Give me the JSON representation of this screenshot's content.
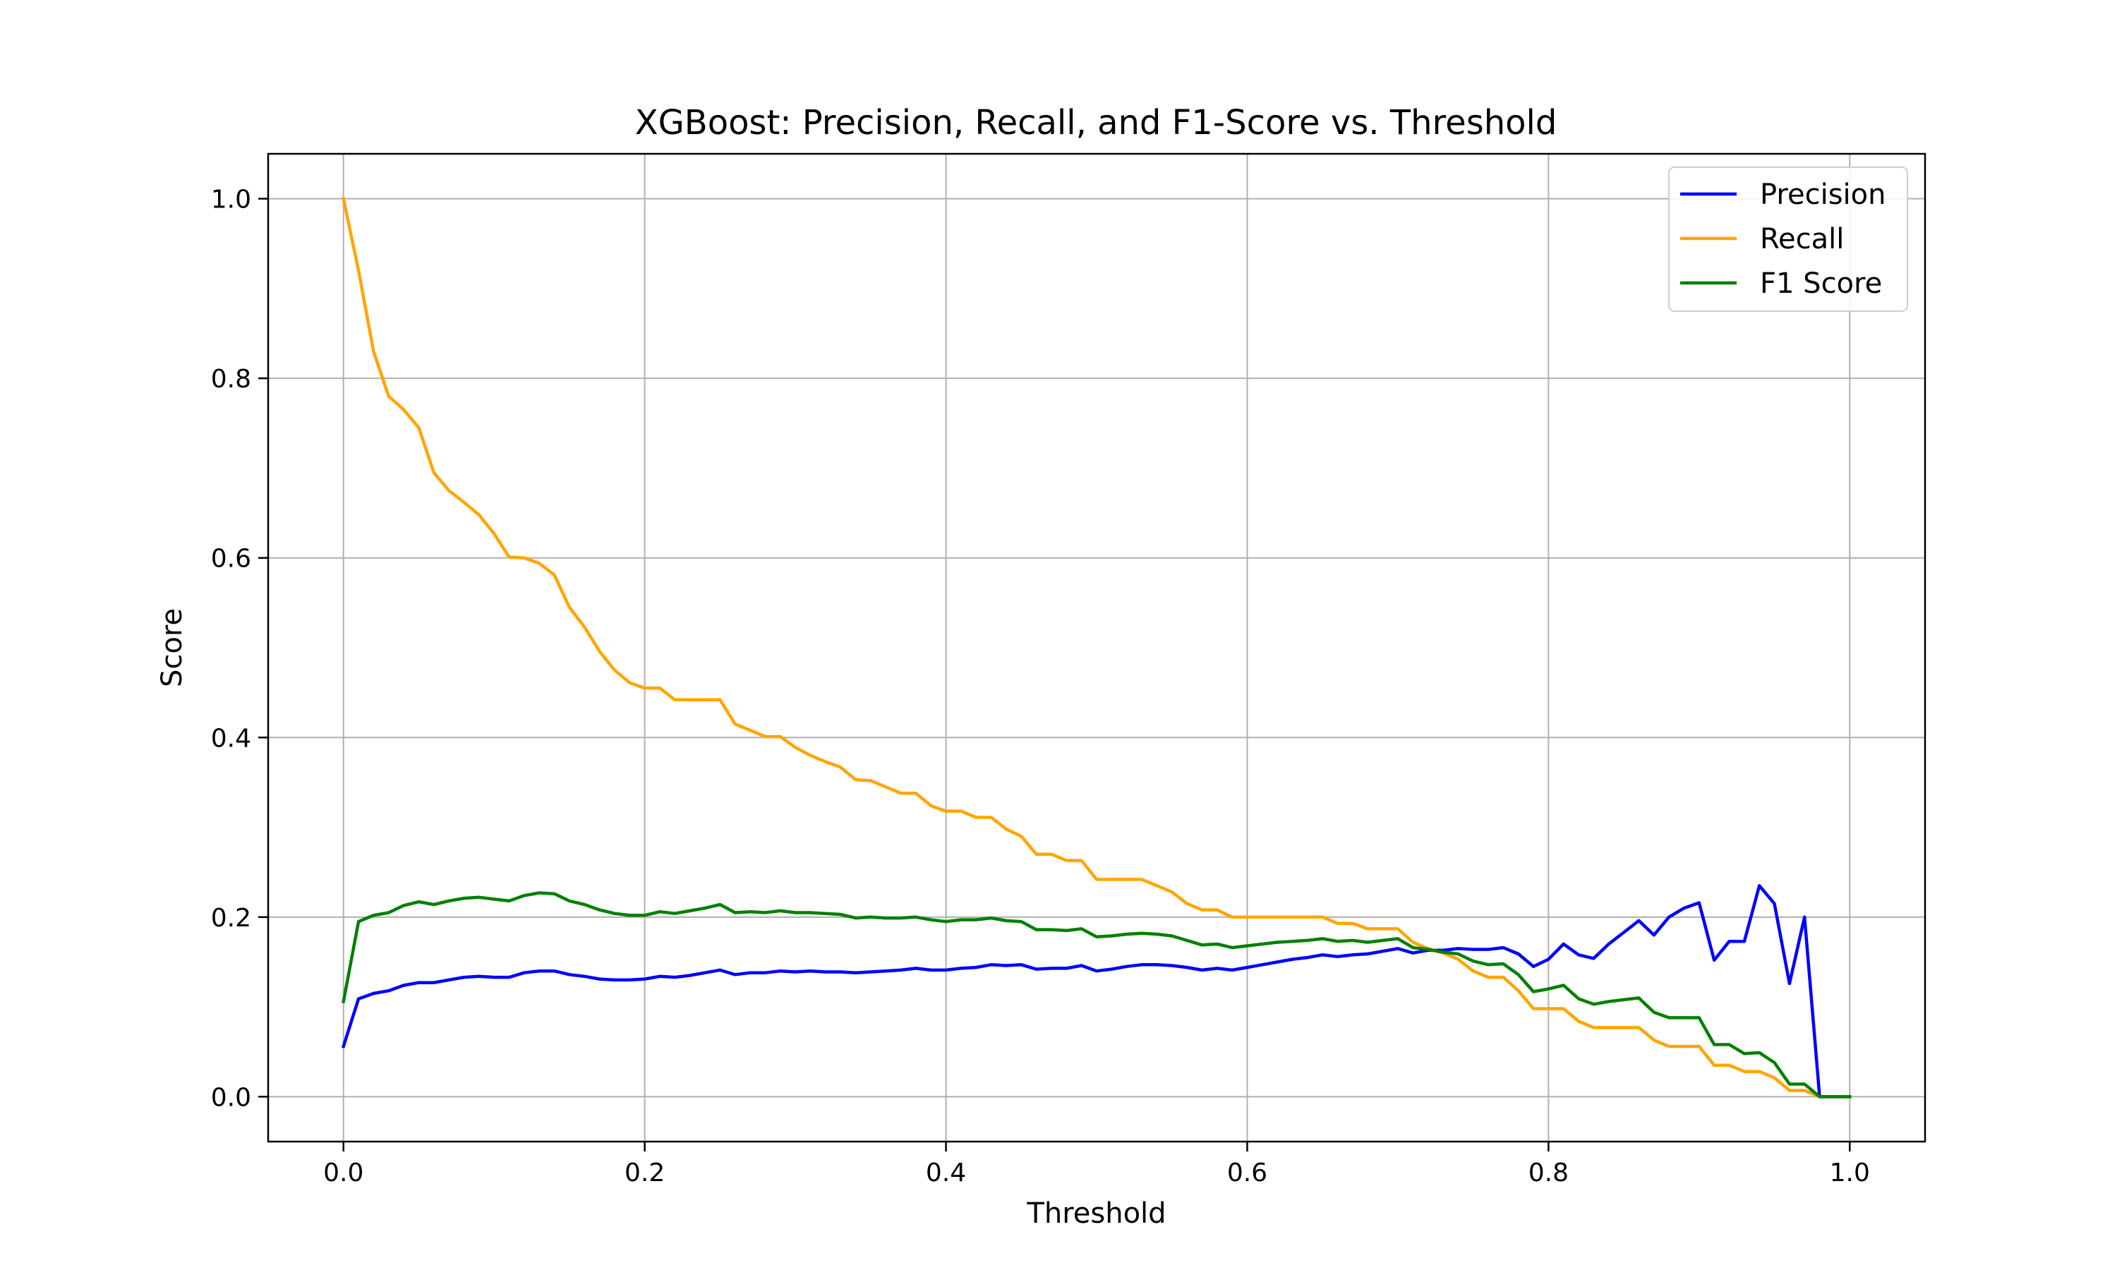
{
  "chart_data": {
    "type": "line",
    "title": "XGBoost: Precision, Recall, and F1-Score vs. Threshold",
    "xlabel": "Threshold",
    "ylabel": "Score",
    "xlim": [
      -0.05,
      1.05
    ],
    "ylim": [
      -0.05,
      1.05
    ],
    "xticks": [
      0.0,
      0.2,
      0.4,
      0.6,
      0.8,
      1.0
    ],
    "xtick_labels": [
      "0.0",
      "0.2",
      "0.4",
      "0.6",
      "0.8",
      "1.0"
    ],
    "yticks": [
      0.0,
      0.2,
      0.4,
      0.6,
      0.8,
      1.0
    ],
    "ytick_labels": [
      "0.0",
      "0.2",
      "0.4",
      "0.6",
      "0.8",
      "1.0"
    ],
    "grid": true,
    "legend_position": "top-right",
    "x": [
      0.0,
      0.01,
      0.02,
      0.03,
      0.04,
      0.05,
      0.06,
      0.07,
      0.08,
      0.09,
      0.1,
      0.11,
      0.12,
      0.13,
      0.14,
      0.15,
      0.16,
      0.17,
      0.18,
      0.19,
      0.2,
      0.21,
      0.22,
      0.23,
      0.24,
      0.25,
      0.26,
      0.27,
      0.28,
      0.29,
      0.3,
      0.31,
      0.32,
      0.33,
      0.34,
      0.35,
      0.36,
      0.37,
      0.38,
      0.39,
      0.4,
      0.41,
      0.42,
      0.43,
      0.44,
      0.45,
      0.46,
      0.47,
      0.48,
      0.49,
      0.5,
      0.51,
      0.52,
      0.53,
      0.54,
      0.55,
      0.56,
      0.57,
      0.58,
      0.59,
      0.6,
      0.61,
      0.62,
      0.63,
      0.64,
      0.65,
      0.66,
      0.67,
      0.68,
      0.69,
      0.7,
      0.71,
      0.72,
      0.73,
      0.74,
      0.75,
      0.76,
      0.77,
      0.78,
      0.79,
      0.8,
      0.81,
      0.82,
      0.83,
      0.84,
      0.85,
      0.86,
      0.87,
      0.88,
      0.89,
      0.9,
      0.91,
      0.92,
      0.93,
      0.94,
      0.95,
      0.96,
      0.97,
      0.98,
      0.99,
      1.0
    ],
    "series": [
      {
        "name": "Precision",
        "color": "#0000ff",
        "values": [
          0.056,
          0.109,
          0.115,
          0.118,
          0.124,
          0.127,
          0.127,
          0.13,
          0.133,
          0.134,
          0.133,
          0.133,
          0.138,
          0.14,
          0.14,
          0.136,
          0.134,
          0.131,
          0.13,
          0.13,
          0.131,
          0.134,
          0.133,
          0.135,
          0.138,
          0.141,
          0.136,
          0.138,
          0.138,
          0.14,
          0.139,
          0.14,
          0.139,
          0.139,
          0.138,
          0.139,
          0.14,
          0.141,
          0.143,
          0.141,
          0.141,
          0.143,
          0.144,
          0.147,
          0.146,
          0.147,
          0.142,
          0.143,
          0.143,
          0.146,
          0.14,
          0.142,
          0.145,
          0.147,
          0.147,
          0.146,
          0.144,
          0.141,
          0.143,
          0.141,
          0.144,
          0.147,
          0.15,
          0.153,
          0.155,
          0.158,
          0.156,
          0.158,
          0.159,
          0.162,
          0.165,
          0.16,
          0.163,
          0.163,
          0.165,
          0.164,
          0.164,
          0.166,
          0.159,
          0.145,
          0.153,
          0.17,
          0.158,
          0.154,
          0.17,
          0.183,
          0.196,
          0.18,
          0.2,
          0.21,
          0.216,
          0.152,
          0.173,
          0.173,
          0.235,
          0.215,
          0.126,
          0.2,
          0.0,
          0.0,
          0.0
        ]
      },
      {
        "name": "Recall",
        "color": "#ffa500",
        "values": [
          1.0,
          0.92,
          0.83,
          0.78,
          0.765,
          0.745,
          0.695,
          0.675,
          0.662,
          0.648,
          0.627,
          0.601,
          0.6,
          0.594,
          0.581,
          0.545,
          0.523,
          0.496,
          0.475,
          0.461,
          0.455,
          0.455,
          0.442,
          0.442,
          0.442,
          0.442,
          0.415,
          0.408,
          0.401,
          0.401,
          0.389,
          0.38,
          0.373,
          0.367,
          0.353,
          0.352,
          0.345,
          0.338,
          0.338,
          0.324,
          0.318,
          0.318,
          0.311,
          0.311,
          0.298,
          0.29,
          0.27,
          0.27,
          0.263,
          0.263,
          0.242,
          0.242,
          0.242,
          0.242,
          0.235,
          0.228,
          0.215,
          0.208,
          0.208,
          0.2,
          0.2,
          0.2,
          0.2,
          0.2,
          0.2,
          0.2,
          0.193,
          0.193,
          0.187,
          0.187,
          0.187,
          0.172,
          0.165,
          0.16,
          0.153,
          0.14,
          0.133,
          0.133,
          0.118,
          0.098,
          0.098,
          0.098,
          0.084,
          0.077,
          0.077,
          0.077,
          0.077,
          0.063,
          0.056,
          0.056,
          0.056,
          0.035,
          0.035,
          0.028,
          0.028,
          0.021,
          0.007,
          0.007,
          0.0,
          0.0,
          0.0
        ]
      },
      {
        "name": "F1 Score",
        "color": "#008000",
        "values": [
          0.106,
          0.195,
          0.202,
          0.205,
          0.213,
          0.217,
          0.214,
          0.218,
          0.221,
          0.222,
          0.22,
          0.218,
          0.224,
          0.227,
          0.226,
          0.218,
          0.214,
          0.208,
          0.204,
          0.202,
          0.202,
          0.206,
          0.204,
          0.207,
          0.21,
          0.214,
          0.205,
          0.206,
          0.205,
          0.207,
          0.205,
          0.205,
          0.204,
          0.203,
          0.199,
          0.2,
          0.199,
          0.199,
          0.2,
          0.197,
          0.195,
          0.197,
          0.197,
          0.199,
          0.196,
          0.195,
          0.186,
          0.186,
          0.185,
          0.187,
          0.178,
          0.179,
          0.181,
          0.182,
          0.181,
          0.179,
          0.174,
          0.169,
          0.17,
          0.166,
          0.168,
          0.17,
          0.172,
          0.173,
          0.174,
          0.176,
          0.173,
          0.174,
          0.172,
          0.174,
          0.176,
          0.166,
          0.164,
          0.161,
          0.159,
          0.151,
          0.147,
          0.148,
          0.136,
          0.117,
          0.12,
          0.124,
          0.109,
          0.103,
          0.106,
          0.108,
          0.11,
          0.094,
          0.088,
          0.088,
          0.088,
          0.058,
          0.058,
          0.048,
          0.049,
          0.038,
          0.014,
          0.014,
          0.0,
          0.0,
          0.0
        ]
      }
    ]
  }
}
